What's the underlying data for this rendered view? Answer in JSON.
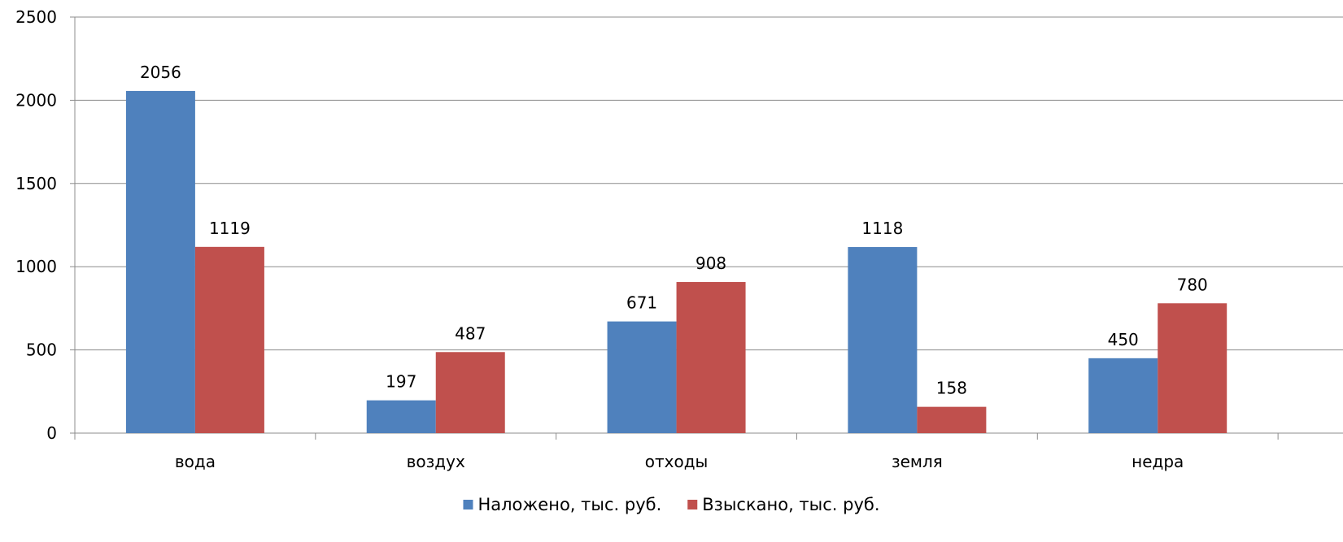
{
  "chart_data": {
    "type": "bar",
    "categories": [
      "вода",
      "воздух",
      "отходы",
      "земля",
      "недра"
    ],
    "series": [
      {
        "name": "Наложено, тыс. руб.",
        "values": [
          2056,
          197,
          671,
          1118,
          450
        ],
        "color": "#4F81BD"
      },
      {
        "name": "Взыскано, тыс. руб.",
        "values": [
          1119,
          487,
          908,
          158,
          780
        ],
        "color": "#C0504D"
      }
    ],
    "yticks": [
      0,
      500,
      1000,
      1500,
      2000,
      2500
    ],
    "ylim": [
      0,
      2500
    ],
    "grid": true,
    "legend_position": "bottom"
  }
}
